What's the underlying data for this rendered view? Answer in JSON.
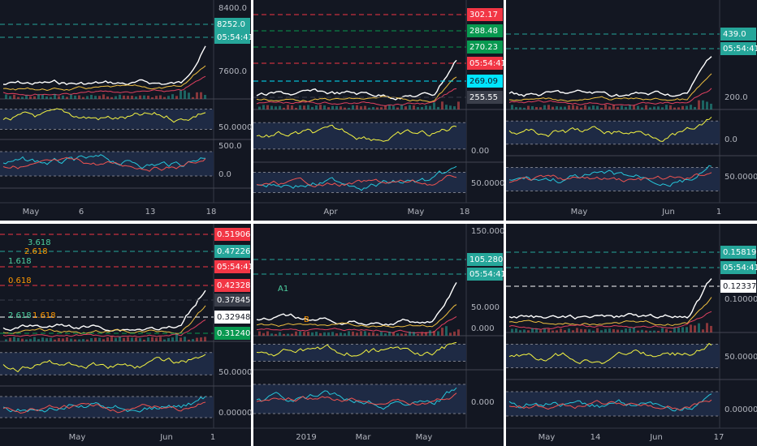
{
  "panels": [
    {
      "tags": [
        {
          "text": "8252.0",
          "color": "#26a69a"
        },
        {
          "text": "05:54:41",
          "color": "#26a69a"
        }
      ],
      "axis": [
        "8400.0",
        "7600.0",
        "50.0000",
        "500.0",
        "0.0"
      ],
      "time": [
        "May",
        "6",
        "13",
        "18"
      ]
    },
    {
      "tags": [
        {
          "text": "302.17",
          "color": "#f23645"
        },
        {
          "text": "288.48",
          "color": "#089950"
        },
        {
          "text": "270.23",
          "color": "#089950"
        },
        {
          "text": "05:54:41",
          "color": "#f23645"
        },
        {
          "text": "269.09",
          "color": "#00e5ff"
        },
        {
          "text": "255.55",
          "color": "#3a3e4a"
        }
      ],
      "axis": [
        "0.00",
        "50.0000"
      ],
      "time": [
        "Apr",
        "May",
        "18"
      ]
    },
    {
      "tags": [
        {
          "text": "439.0",
          "color": "#26a69a"
        },
        {
          "text": "05:54:41",
          "color": "#26a69a"
        }
      ],
      "axis": [
        "200.0",
        "0.0",
        "50.0000"
      ],
      "time": [
        "May",
        "Jun",
        "1"
      ]
    },
    {
      "tags": [
        {
          "text": "0.51906",
          "color": "#f23645"
        },
        {
          "text": "0.47226",
          "color": "#26a69a"
        },
        {
          "text": "05:54:41",
          "color": "#f23645"
        },
        {
          "text": "0.42328",
          "color": "#f23645"
        },
        {
          "text": "0.37845",
          "color": "#3a3e4a"
        },
        {
          "text": "0.32948",
          "color": "#ffffff"
        },
        {
          "text": "0.31240",
          "color": "#089950"
        }
      ],
      "axis": [
        "50.0000",
        "0.00000"
      ],
      "time": [
        "May",
        "Jun",
        "1"
      ],
      "notes": [
        "3.618",
        "2.618",
        "1.618",
        "0.618",
        "2.618",
        "1.618"
      ]
    },
    {
      "tags": [
        {
          "text": "105.280",
          "color": "#26a69a"
        },
        {
          "text": "05:54:41",
          "color": "#26a69a"
        }
      ],
      "axis": [
        "150.000",
        "50.000",
        "0.000",
        "0.000"
      ],
      "time": [
        "2019",
        "Mar",
        "May"
      ],
      "notes": [
        "A1",
        "B"
      ]
    },
    {
      "tags": [
        {
          "text": "0.15819",
          "color": "#26a69a"
        },
        {
          "text": "05:54:41",
          "color": "#26a69a"
        },
        {
          "text": "0.12337",
          "color": "#ffffff"
        }
      ],
      "axis": [
        "0.10000",
        "50.0000",
        "0.00000"
      ],
      "time": [
        "May",
        "14",
        "Jun",
        "17"
      ]
    }
  ]
}
